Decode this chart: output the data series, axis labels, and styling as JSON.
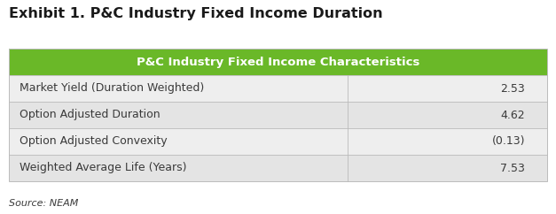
{
  "title": "Exhibit 1. P&C Industry Fixed Income Duration",
  "header_text": "P&C Industry Fixed Income Characteristics",
  "header_bg_color": "#6ab828",
  "header_text_color": "#ffffff",
  "rows": [
    [
      "Market Yield (Duration Weighted)",
      "2.53"
    ],
    [
      "Option Adjusted Duration",
      "4.62"
    ],
    [
      "Option Adjusted Convexity",
      "(0.13)"
    ],
    [
      "Weighted Average Life (Years)",
      "7.53"
    ]
  ],
  "row_bg_colors": [
    "#eeeeee",
    "#e4e4e4",
    "#eeeeee",
    "#e4e4e4"
  ],
  "row_text_color": "#3a3a3a",
  "source_text": "Source: NEAM",
  "title_fontsize": 11.5,
  "header_fontsize": 9.5,
  "row_fontsize": 9,
  "source_fontsize": 8,
  "col_split": 0.63,
  "background_color": "#ffffff",
  "border_color": "#bbbbbb",
  "title_color": "#1a1a1a",
  "fig_width": 6.27,
  "fig_height": 2.42,
  "fig_dpi": 100
}
